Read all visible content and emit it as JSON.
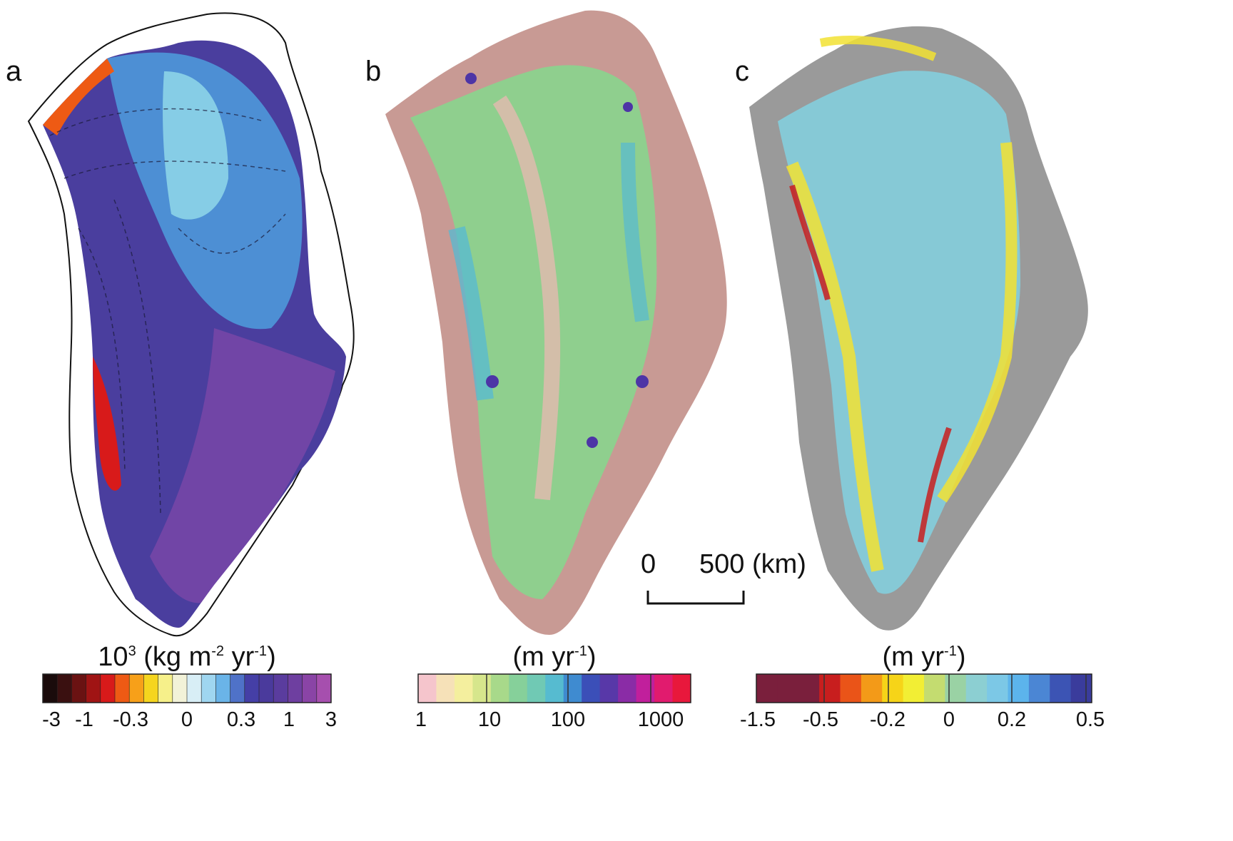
{
  "panels": [
    {
      "letter": "a",
      "title_base": "10",
      "title_exp": "3",
      "title_rest": " (kg m",
      "title_exp2": "-2",
      "title_rest2": " yr",
      "title_exp3": "-1",
      "title_end": ")",
      "ticks": [
        "-3",
        "-1",
        "-0.3",
        "0",
        "0.3",
        "1",
        "3"
      ]
    },
    {
      "letter": "b",
      "title_base": "(m yr",
      "title_exp": "-1",
      "title_end": ")",
      "ticks": [
        "1",
        "10",
        "100",
        "1000"
      ]
    },
    {
      "letter": "c",
      "title_base": "(m yr",
      "title_exp": "-1",
      "title_end": ")",
      "ticks": [
        "-1.5",
        "-0.5",
        "-0.2",
        "0",
        "0.2",
        "0.5"
      ]
    }
  ],
  "scalebar": {
    "start": "0",
    "end": "500 (km)"
  },
  "colors": {
    "a_scale": [
      "#1a0b0b",
      "#3a1010",
      "#6a1212",
      "#a01414",
      "#d81a1a",
      "#ee5a14",
      "#f7a019",
      "#f5d51e",
      "#f6f08a",
      "#f2f2d8",
      "#d8eef6",
      "#9fd6f0",
      "#6ab4e8",
      "#4f72c8",
      "#453fa6",
      "#4a3a9c",
      "#5a3c9e",
      "#6e3fa0",
      "#8a44a6",
      "#a64fae"
    ],
    "b_scale": [
      "#f5c5cc",
      "#f6e1b8",
      "#f4ef9e",
      "#d6e68c",
      "#a8d98a",
      "#86d09a",
      "#70c9b4",
      "#56bbd0",
      "#3f8bd0",
      "#3b4fb8",
      "#5838a8",
      "#8a2ca6",
      "#c11f9c",
      "#e11b6e",
      "#e8183c"
    ],
    "c_scale": [
      "#7a1f3c",
      "#7a1f3c",
      "#7a1f3c",
      "#c81e1e",
      "#ea5418",
      "#f39a18",
      "#f6d418",
      "#f2ee34",
      "#c4dc70",
      "#9ad2a4",
      "#8ccfd2",
      "#7cc8e6",
      "#5cb4ec",
      "#4b86d4",
      "#3c54b4",
      "#3a3c9c"
    ]
  }
}
